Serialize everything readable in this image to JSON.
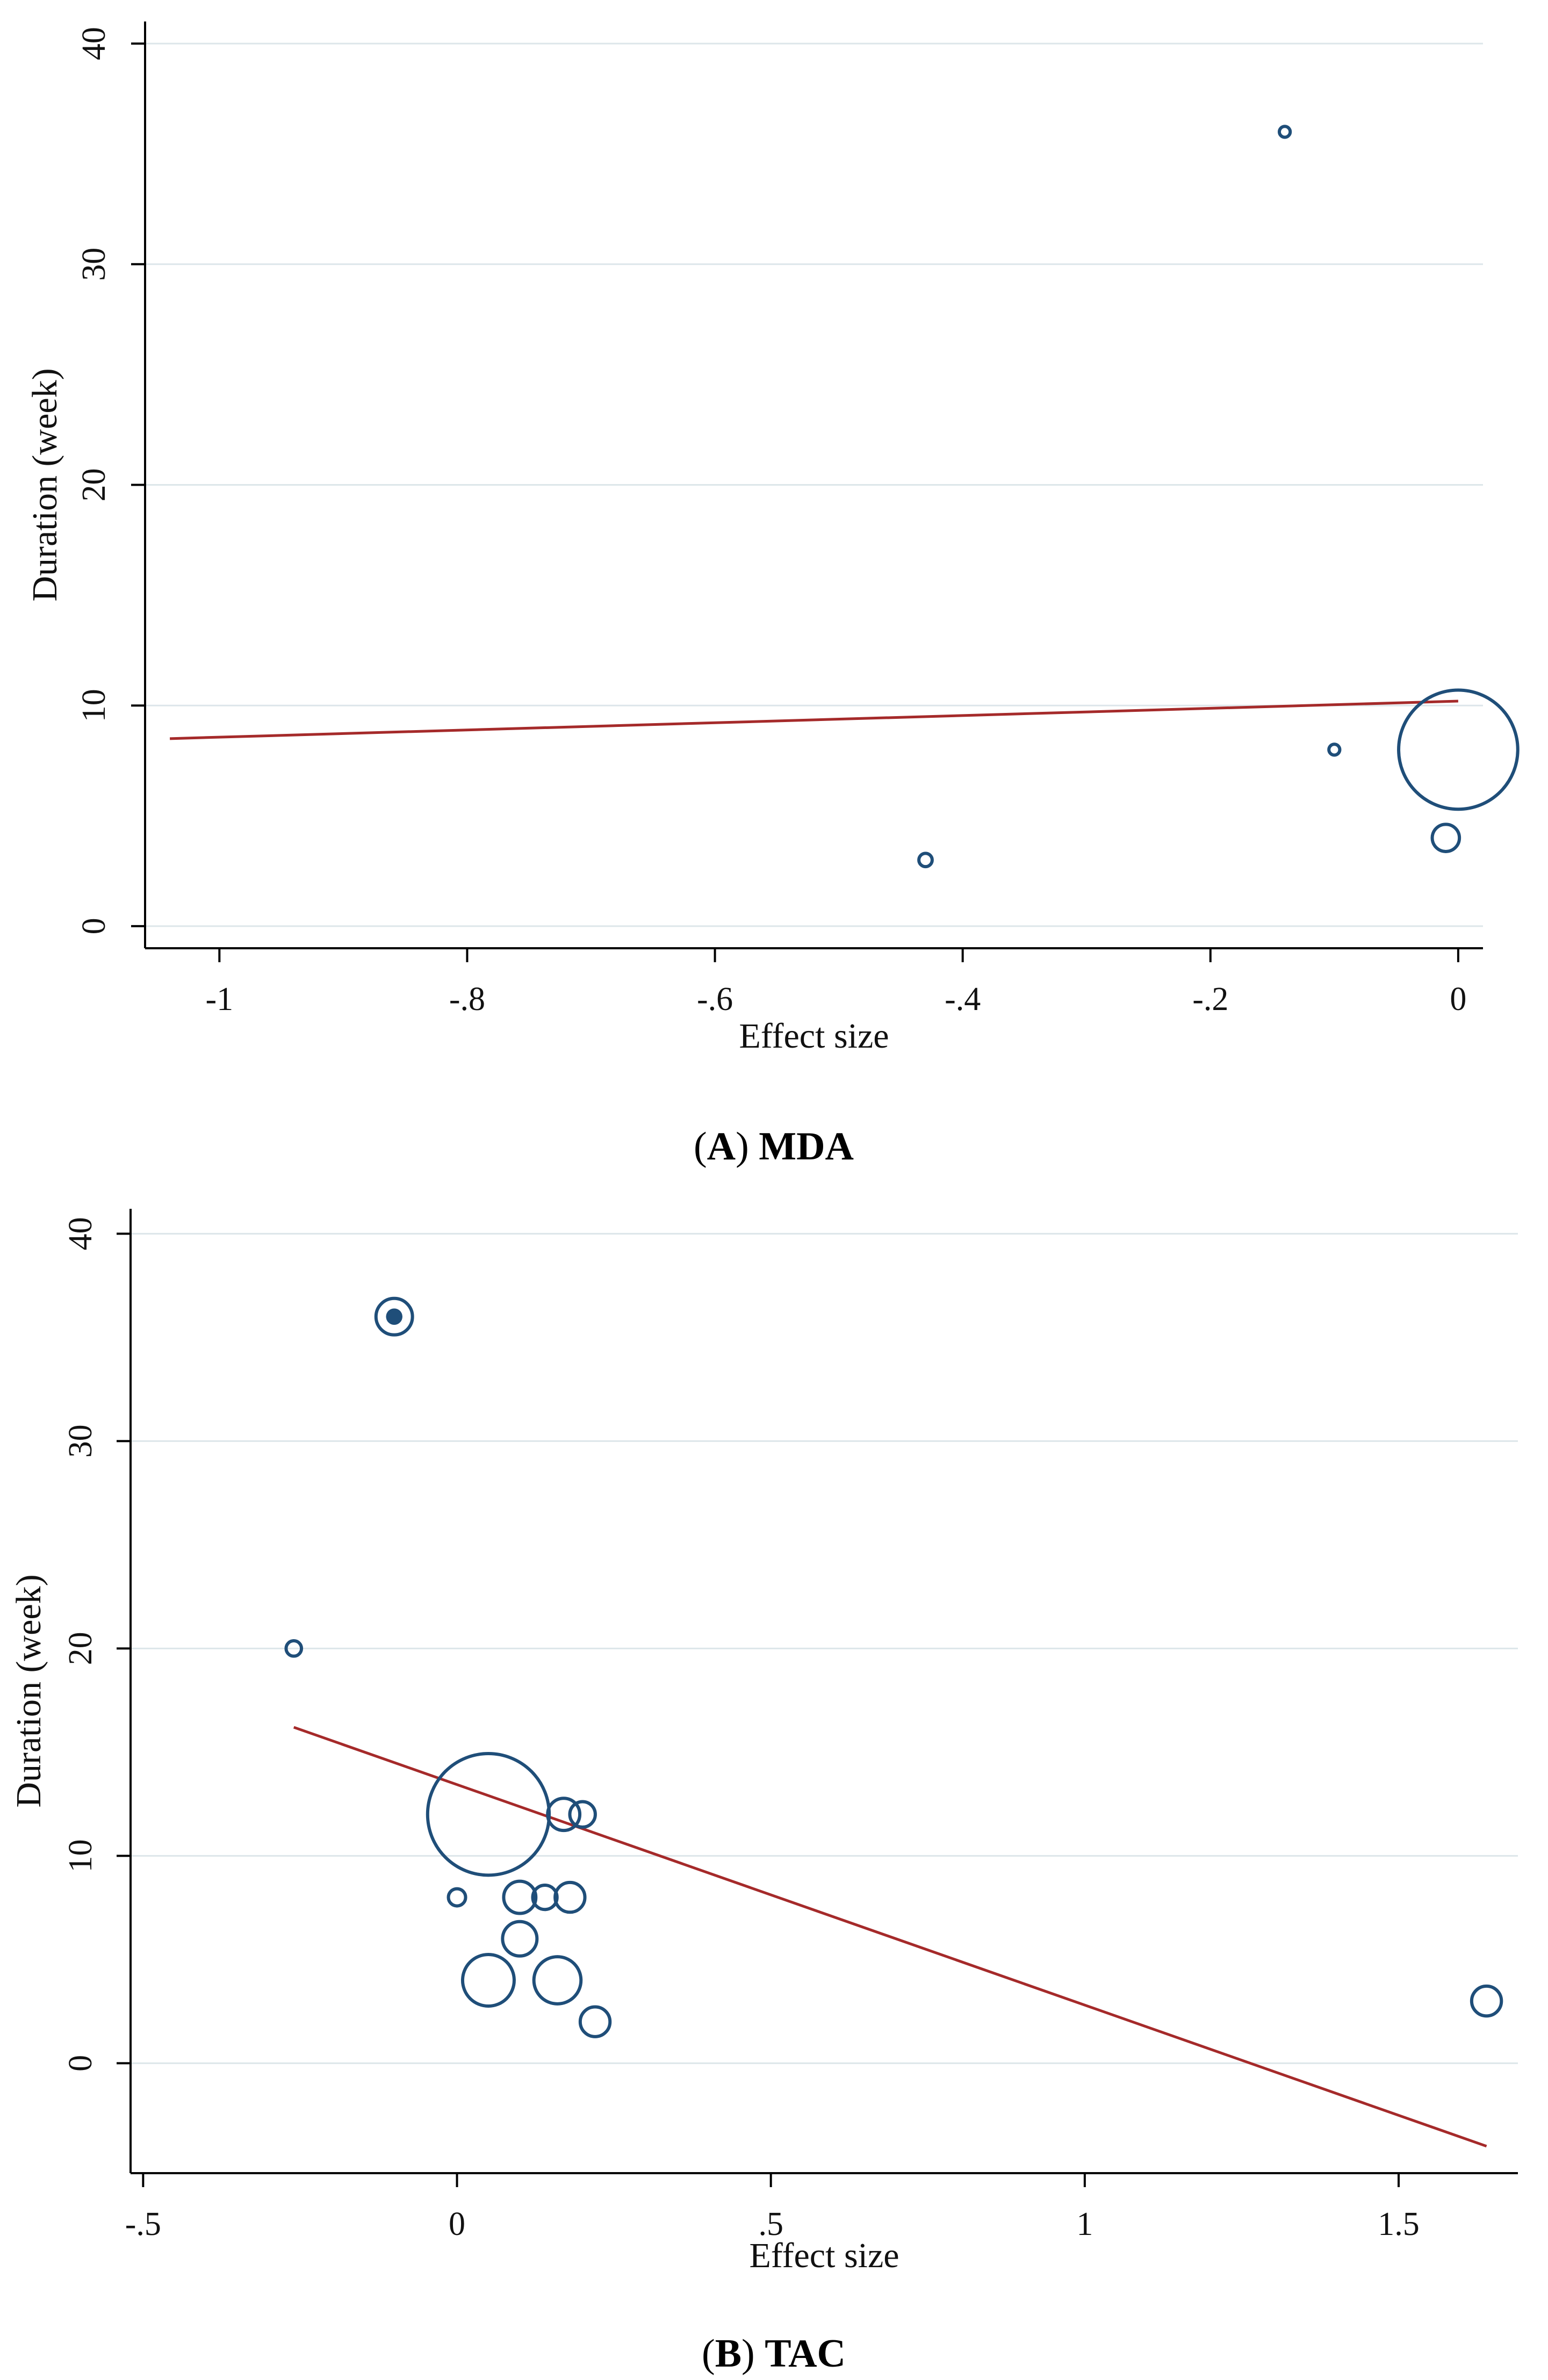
{
  "chart_data": [
    {
      "type": "scatter",
      "title": "",
      "caption_letter": "A",
      "caption_text": "MDA",
      "xlabel": "Effect size",
      "ylabel": "Duration (week)",
      "xlim": [
        -1.06,
        0.02
      ],
      "ylim": [
        -1,
        41
      ],
      "x_ticks": [
        -1,
        -0.8,
        -0.6,
        -0.4,
        -0.2,
        0
      ],
      "x_tick_labels": [
        "-1",
        "-.8",
        "-.6",
        "-.4",
        "-.2",
        "0"
      ],
      "y_ticks": [
        0,
        10,
        20,
        30,
        40
      ],
      "y_tick_labels": [
        "0",
        "10",
        "20",
        "30",
        "40"
      ],
      "grid": true,
      "points": [
        {
          "x": 0.0,
          "y": 8,
          "weight": 48
        },
        {
          "x": -0.01,
          "y": 4,
          "weight": 2.5
        },
        {
          "x": -0.43,
          "y": 3,
          "weight": 0.6
        },
        {
          "x": -0.14,
          "y": 36,
          "weight": 0.4
        },
        {
          "x": -0.1,
          "y": 8,
          "weight": 0.4
        }
      ],
      "fit_line": {
        "x": [
          -1.04,
          0.0
        ],
        "y": [
          8.5,
          10.2
        ]
      },
      "marker_color": "#1f4e79",
      "line_color": "#a52a2a"
    },
    {
      "type": "scatter",
      "title": "",
      "caption_letter": "B",
      "caption_text": "TAC",
      "xlabel": "Effect size",
      "ylabel": "Duration (week)",
      "xlim": [
        -0.52,
        1.69
      ],
      "ylim": [
        -5.3,
        41.2
      ],
      "x_ticks": [
        -0.5,
        0,
        0.5,
        1,
        1.5
      ],
      "x_tick_labels": [
        "-.5",
        "0",
        ".5",
        "1",
        "1.5"
      ],
      "y_ticks": [
        0,
        10,
        20,
        30,
        40
      ],
      "y_tick_labels": [
        "0",
        "10",
        "20",
        "30",
        "40"
      ],
      "grid": true,
      "points": [
        {
          "x": -0.1,
          "y": 36,
          "weight": 4.5,
          "double_ring": true
        },
        {
          "x": -0.26,
          "y": 20,
          "weight": 0.8
        },
        {
          "x": 0.05,
          "y": 12,
          "weight": 50
        },
        {
          "x": 0.17,
          "y": 12,
          "weight": 3.5
        },
        {
          "x": 0.2,
          "y": 12,
          "weight": 2.2
        },
        {
          "x": 0.0,
          "y": 8,
          "weight": 1.0
        },
        {
          "x": 0.1,
          "y": 8,
          "weight": 3.5
        },
        {
          "x": 0.14,
          "y": 8,
          "weight": 2.0
        },
        {
          "x": 0.18,
          "y": 8,
          "weight": 3.0
        },
        {
          "x": 0.1,
          "y": 6,
          "weight": 4.0
        },
        {
          "x": 0.05,
          "y": 4,
          "weight": 9.0
        },
        {
          "x": 0.16,
          "y": 4,
          "weight": 7.5
        },
        {
          "x": 0.22,
          "y": 2,
          "weight": 3.0
        },
        {
          "x": 1.64,
          "y": 3,
          "weight": 3.0
        }
      ],
      "fit_line": {
        "x": [
          -0.26,
          1.64
        ],
        "y": [
          16.2,
          -4.0
        ]
      },
      "marker_color": "#1f4e79",
      "line_color": "#a52a2a"
    }
  ]
}
